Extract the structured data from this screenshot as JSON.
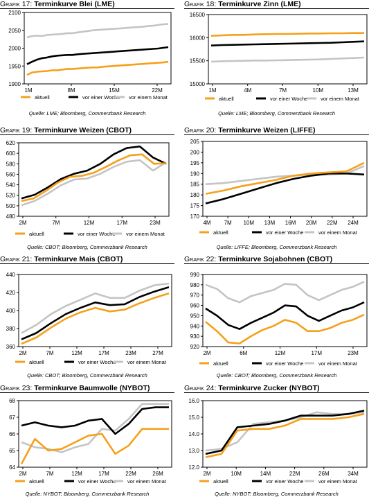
{
  "colors": {
    "aktuell": "#f5a01a",
    "woche": "#000000",
    "monat": "#c4c4c4"
  },
  "chart_data": [
    {
      "type": "line",
      "title_num": "Grafik 17:",
      "title": "Terminkurve Blei (LME)",
      "x_ticks": [
        "1M",
        "8M",
        "15M",
        "22M"
      ],
      "y_ticks": [
        1900,
        1950,
        2000,
        2050,
        2100
      ],
      "ylim": [
        1900,
        2100
      ],
      "legend": [
        "aktuell",
        "vor einer Woche",
        "vor einem Monat"
      ],
      "source": "Quelle: LME; Bloomberg, Commerzbank Research",
      "series": [
        {
          "name": "aktuell",
          "values": [
            1925,
            1932,
            1934,
            1935,
            1936,
            1938,
            1938,
            1940,
            1942,
            1942,
            1943,
            1944,
            1945,
            1946,
            1946,
            1948,
            1949,
            1950,
            1951,
            1952,
            1953,
            1954,
            1955,
            1956,
            1957,
            1958,
            1959,
            1960,
            1962
          ]
        },
        {
          "name": "vor einer Woche",
          "values": [
            1955,
            1962,
            1968,
            1972,
            1974,
            1977,
            1979,
            1980,
            1981,
            1981,
            1983,
            1984,
            1985,
            1986,
            1987,
            1988,
            1989,
            1990,
            1991,
            1992,
            1993,
            1994,
            1995,
            1996,
            1997,
            1998,
            1999,
            2001,
            2003
          ]
        },
        {
          "name": "vor einem Monat",
          "values": [
            2030,
            2034,
            2035,
            2034,
            2037,
            2038,
            2039,
            2040,
            2042,
            2042,
            2044,
            2046,
            2048,
            2050,
            2051,
            2052,
            2053,
            2054,
            2055,
            2056,
            2057,
            2058,
            2059,
            2060,
            2062,
            2063,
            2065,
            2067,
            2068
          ]
        }
      ]
    },
    {
      "type": "line",
      "title_num": "Grafik 18:",
      "title": "Terminkurve Zinn (LME)",
      "x_ticks": [
        "1M",
        "4M",
        "7M",
        "10M",
        "13M"
      ],
      "y_ticks": [
        15000,
        15500,
        16000,
        16500
      ],
      "ylim": [
        15000,
        16500
      ],
      "legend": [
        "aktuell",
        "vor einer Woche",
        "vor einem Monat"
      ],
      "source": "Quelle: LME; Bloomberg, Commerzbank Research",
      "series": [
        {
          "name": "aktuell",
          "values": [
            16040,
            16050,
            16060,
            16060,
            16070,
            16075,
            16080,
            16080,
            16085,
            16090,
            16090,
            16095,
            16095,
            16100,
            16100
          ]
        },
        {
          "name": "vor einer Woche",
          "values": [
            15830,
            15840,
            15845,
            15850,
            15855,
            15860,
            15865,
            15870,
            15875,
            15880,
            15885,
            15890,
            15900,
            15910,
            15920
          ]
        },
        {
          "name": "vor einem Monat",
          "values": [
            15480,
            15490,
            15495,
            15500,
            15505,
            15505,
            15510,
            15515,
            15520,
            15525,
            15530,
            15540,
            15550,
            15560,
            15570
          ]
        }
      ]
    },
    {
      "type": "line",
      "title_num": "Grafik 19:",
      "title": "Terminkurve Weizen (CBOT)",
      "x_ticks": [
        "2M",
        "7M",
        "12M",
        "17M",
        "23M"
      ],
      "y_ticks": [
        480,
        500,
        520,
        540,
        560,
        580,
        600,
        620
      ],
      "ylim": [
        480,
        620
      ],
      "legend": [
        "aktuell",
        "vor einer Woche",
        "vor einem Monat"
      ],
      "source": "Quelle: CBOT; Bloomberg, Commerzbank Research",
      "series": [
        {
          "name": "aktuell",
          "values": [
            509,
            514,
            528,
            544,
            555,
            557,
            563,
            574,
            586,
            596,
            598,
            580,
            581
          ]
        },
        {
          "name": "vor einer Woche",
          "values": [
            514,
            521,
            535,
            551,
            561,
            567,
            580,
            598,
            610,
            613,
            592,
            580
          ]
        },
        {
          "name": "vor einem Monat",
          "values": [
            501,
            509,
            523,
            539,
            550,
            552,
            561,
            574,
            584,
            587,
            567,
            583
          ]
        }
      ]
    },
    {
      "type": "line",
      "title_num": "Grafik 20:",
      "title": "Terminkurve Weizen (LIFFE)",
      "x_ticks": [
        "4M",
        "7M",
        "10M",
        "13M",
        "16M",
        "20M",
        "22M",
        "24M"
      ],
      "y_ticks": [
        170,
        175,
        180,
        185,
        190,
        195,
        200,
        205
      ],
      "ylim": [
        170,
        205
      ],
      "legend": [
        "aktuell",
        "vor einer Woche",
        "vor einem Monat"
      ],
      "source": "Quelle: LIFFE; Bloomberg, Commerzbank Research",
      "series": [
        {
          "name": "aktuell",
          "values": [
            180.5,
            182,
            184,
            185.5,
            187,
            189,
            190,
            190.5,
            191,
            195
          ]
        },
        {
          "name": "vor einer Woche",
          "values": [
            176,
            178,
            180.5,
            183,
            185.5,
            187.5,
            189,
            190,
            190,
            189.5
          ]
        },
        {
          "name": "vor einem Monat",
          "values": [
            185,
            185.5,
            186.5,
            187.5,
            188.5,
            189,
            189.5,
            189.5,
            190,
            193.5
          ]
        }
      ]
    },
    {
      "type": "line",
      "title_num": "Grafik 21:",
      "title": "Terminkurve Mais (CBOT)",
      "x_ticks": [
        "2M",
        "7M",
        "12M",
        "17M",
        "23M",
        "27M"
      ],
      "y_ticks": [
        360,
        380,
        400,
        420,
        440
      ],
      "ylim": [
        360,
        440
      ],
      "legend": [
        "aktuell",
        "vor einer Woche",
        "vor einem Monat"
      ],
      "source": "Quelle: CBOT; Bloomberg, Commerzbank Research",
      "series": [
        {
          "name": "aktuell",
          "values": [
            363,
            370,
            381,
            391,
            398,
            403,
            399,
            401,
            408,
            414,
            419
          ]
        },
        {
          "name": "vor einer Woche",
          "values": [
            368,
            375,
            386,
            396,
            403,
            409,
            406,
            407,
            415,
            421,
            426
          ]
        },
        {
          "name": "vor einem Monat",
          "values": [
            375,
            384,
            396,
            405,
            412,
            419,
            414,
            414,
            422,
            428,
            430
          ]
        }
      ]
    },
    {
      "type": "line",
      "title_num": "Grafik 22:",
      "title": "Terminkurve Sojabohnen (CBOT)",
      "x_ticks": [
        "2M",
        "6M",
        "12M",
        "17M",
        "23M"
      ],
      "y_ticks": [
        920,
        930,
        940,
        950,
        960,
        970,
        980,
        990
      ],
      "ylim": [
        920,
        990
      ],
      "legend": [
        "aktuell",
        "vor einer Woche",
        "vor einem Monat"
      ],
      "source": "Quelle: CBOT; Bloomberg, Commerzbank Research",
      "series": [
        {
          "name": "aktuell",
          "values": [
            944,
            935,
            924,
            923,
            930,
            936,
            940,
            946,
            943,
            935,
            935,
            938,
            943,
            946,
            951
          ]
        },
        {
          "name": "vor einer Woche",
          "values": [
            957,
            950,
            941,
            937,
            943,
            948,
            953,
            960,
            959,
            950,
            945,
            950,
            955,
            958,
            963
          ]
        },
        {
          "name": "vor einem Monat",
          "values": [
            980,
            976,
            967,
            963,
            969,
            972,
            975,
            981,
            980,
            970,
            965,
            970,
            975,
            978,
            983
          ]
        }
      ]
    },
    {
      "type": "line",
      "title_num": "Grafik 23:",
      "title": "Terminkurve Baumwolle (NYBOT)",
      "x_ticks": [
        "2M",
        "7M",
        "12M",
        "17M",
        "22M",
        "26M"
      ],
      "y_ticks": [
        64,
        65,
        66,
        67,
        68
      ],
      "ylim": [
        64,
        68
      ],
      "legend": [
        "aktuell",
        "vor einer Woche",
        "vor einem Monat"
      ],
      "source": "Quelle: NYBOT; Bloomberg, Commerzbank Research",
      "series": [
        {
          "name": "aktuell",
          "values": [
            64.2,
            65.7,
            65.0,
            65.1,
            65.5,
            65.9,
            66.0,
            64.8,
            65.3,
            66.3,
            66.3,
            66.3
          ]
        },
        {
          "name": "vor einer Woche",
          "values": [
            66.5,
            66.7,
            66.5,
            66.4,
            66.5,
            66.8,
            66.9,
            66.0,
            66.6,
            67.5,
            67.6,
            67.6
          ]
        },
        {
          "name": "vor einem Monat",
          "values": [
            65.5,
            65.2,
            65.1,
            64.9,
            65.2,
            65.4,
            66.3,
            66.2,
            66.9,
            67.8,
            67.8,
            67.8
          ]
        }
      ]
    },
    {
      "type": "line",
      "title_num": "Grafik 24:",
      "title": "Terminkurve Zucker (NYBOT)",
      "x_ticks": [
        "2M",
        "10M",
        "14M",
        "22M",
        "26M",
        "34M"
      ],
      "y_ticks": [
        12.0,
        13.0,
        14.0,
        15.0,
        16.0
      ],
      "ylim": [
        12.0,
        16.0
      ],
      "legend": [
        "aktuell",
        "vor einer Woche",
        "vor einem Monat"
      ],
      "source": "Quelle: NYBOT; Bloomberg, Commerzbank Research",
      "series": [
        {
          "name": "aktuell",
          "values": [
            12.6,
            12.8,
            14.2,
            14.3,
            14.3,
            14.5,
            14.9,
            14.9,
            14.9,
            15.0,
            15.2
          ]
        },
        {
          "name": "vor einer Woche",
          "values": [
            12.8,
            13.0,
            14.4,
            14.5,
            14.6,
            14.8,
            15.1,
            15.1,
            15.1,
            15.2,
            15.4
          ]
        },
        {
          "name": "vor einem Monat",
          "values": [
            13.0,
            13.1,
            13.5,
            14.6,
            14.7,
            14.8,
            15.0,
            15.3,
            15.2,
            15.2,
            15.3
          ]
        }
      ]
    }
  ]
}
